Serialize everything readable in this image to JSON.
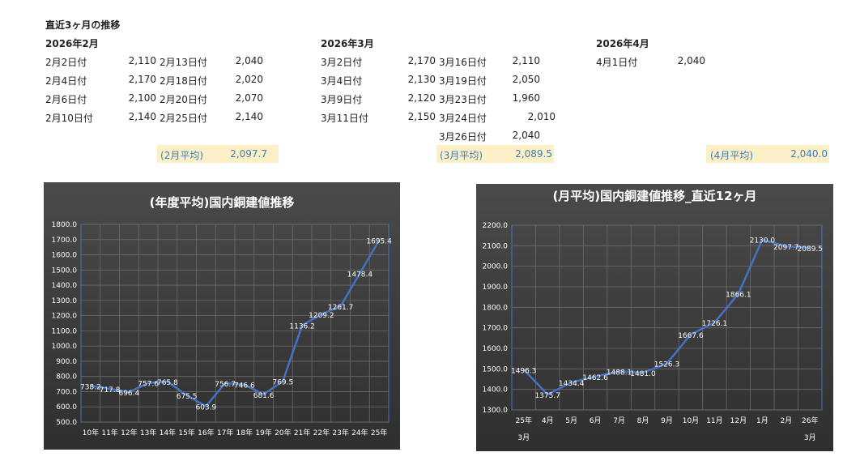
{
  "title": "直近3ヶ月の推移",
  "months": [
    {
      "heading": "2026年2月",
      "col1": [
        {
          "date": "2月2日付",
          "value": "2,110"
        },
        {
          "date": "2月4日付",
          "value": "2,170"
        },
        {
          "date": "2月6日付",
          "value": "2,100"
        },
        {
          "date": "2月10日付",
          "value": "2,140"
        }
      ],
      "col2": [
        {
          "date": "2月13日付",
          "value": "2,040"
        },
        {
          "date": "2月18日付",
          "value": "2,020"
        },
        {
          "date": "2月20日付",
          "value": "2,070"
        },
        {
          "date": "2月25日付",
          "value": "2,140"
        }
      ],
      "avg_label": "(2月平均)",
      "avg_value": "2,097.7"
    },
    {
      "heading": "2026年3月",
      "col1": [
        {
          "date": "3月2日付",
          "value": "2,170"
        },
        {
          "date": "3月4日付",
          "value": "2,130"
        },
        {
          "date": "3月9日付",
          "value": "2,120"
        },
        {
          "date": "3月11日付",
          "value": "2,150"
        }
      ],
      "col2": [
        {
          "date": "3月16日付",
          "value": "2,110"
        },
        {
          "date": "3月19日付",
          "value": "2,050"
        },
        {
          "date": "3月23日付",
          "value": "1,960"
        },
        {
          "date": "3月24日付",
          "value": "2,010"
        },
        {
          "date": "3月26日付",
          "value": "2,040"
        }
      ],
      "avg_label": "(3月平均)",
      "avg_value": "2,089.5"
    },
    {
      "heading": "2026年4月",
      "col1": [
        {
          "date": "4月1日付",
          "value": "2,040"
        }
      ],
      "col2": [],
      "avg_label": "(4月平均)",
      "avg_value": "2,040.0"
    }
  ],
  "chart_data": [
    {
      "type": "line",
      "title": "(年度平均)国内銅建値推移",
      "categories": [
        "10年",
        "11年",
        "12年",
        "13年",
        "14年",
        "15年",
        "16年",
        "17年",
        "18年",
        "19年",
        "20年",
        "21年",
        "22年",
        "23年",
        "24年",
        "25年"
      ],
      "values": [
        738.2,
        717.8,
        696.4,
        757.6,
        765.8,
        675.5,
        603.9,
        756.7,
        746.6,
        681.6,
        769.5,
        1136.2,
        1209.2,
        1261.7,
        1478.4,
        1695.4
      ],
      "data_labels": [
        "738.2",
        "717.8",
        "696.4",
        "757.6",
        "765.8",
        "675.5",
        "603.9",
        "756.7",
        "746.6",
        "681.6",
        "769.5",
        "1136.2",
        "1209.2",
        "1261.7",
        "1478.4",
        "1695.4"
      ],
      "ylim": [
        500,
        1800
      ],
      "yticks": [
        "500.0",
        "600.0",
        "700.0",
        "800.0",
        "900.0",
        "1000.0",
        "1100.0",
        "1200.0",
        "1300.0",
        "1400.0",
        "1500.0",
        "1600.0",
        "1700.0",
        "1800.0"
      ],
      "grid": true,
      "line_color": "#4472c4"
    },
    {
      "type": "line",
      "title": "(月平均)国内銅建値推移_直近12ヶ月",
      "categories": [
        [
          "25年",
          "3月"
        ],
        [
          "4月"
        ],
        [
          "5月"
        ],
        [
          "6月"
        ],
        [
          "7月"
        ],
        [
          "8月"
        ],
        [
          "9月"
        ],
        [
          "10月"
        ],
        [
          "11月"
        ],
        [
          "12月"
        ],
        [
          "1月"
        ],
        [
          "2月"
        ],
        [
          "26年",
          "3月"
        ]
      ],
      "values": [
        1496.3,
        1375.7,
        1434.4,
        1462.6,
        1488.1,
        1481.0,
        1526.3,
        1667.6,
        1726.1,
        1866.1,
        2130.0,
        2097.7,
        2089.5
      ],
      "data_labels": [
        "1496.3",
        "1375.7",
        "1434.4",
        "1462.6",
        "1488.1",
        "1481.0",
        "1526.3",
        "1667.6",
        "1726.1",
        "1866.1",
        "2130.0",
        "2097.7",
        "2089.5"
      ],
      "ylim": [
        1300,
        2200
      ],
      "yticks": [
        "1300.0",
        "1400.0",
        "1500.0",
        "1600.0",
        "1700.0",
        "1800.0",
        "1900.0",
        "2000.0",
        "2100.0",
        "2200.0"
      ],
      "grid": true,
      "line_color": "#4472c4"
    }
  ]
}
